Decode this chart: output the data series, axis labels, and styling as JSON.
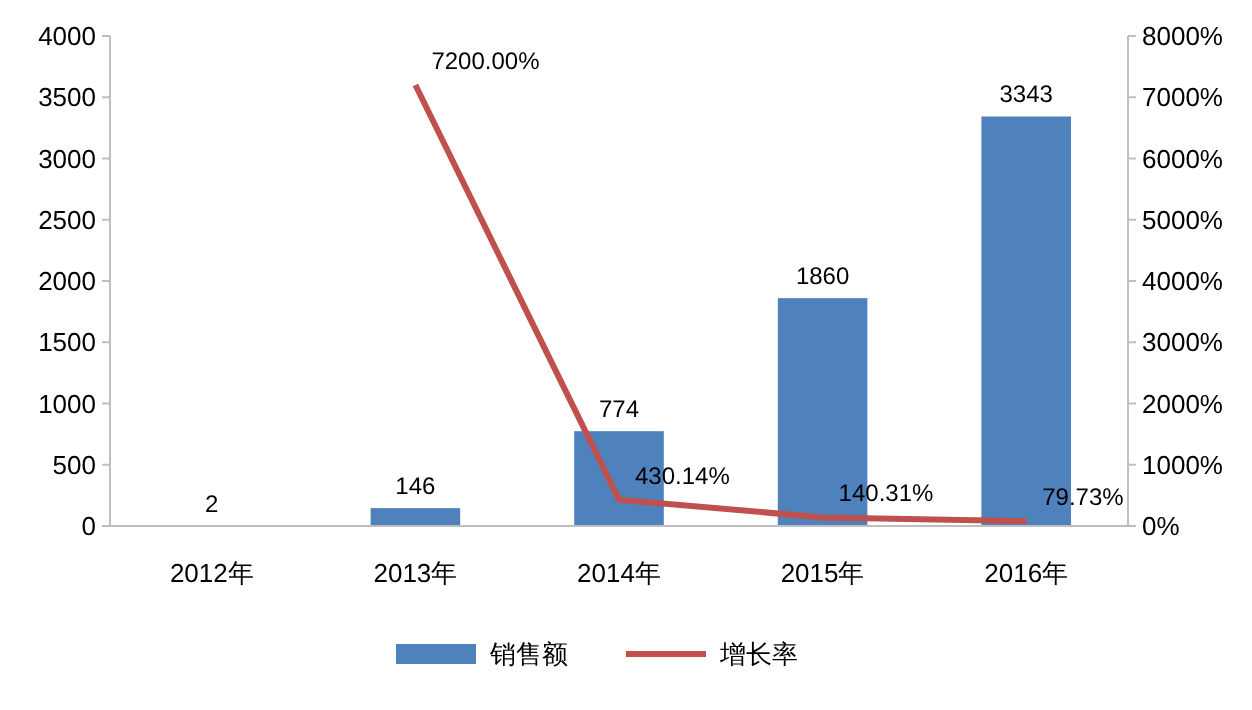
{
  "chart_data": {
    "type": "bar",
    "categories": [
      "2012年",
      "2013年",
      "2014年",
      "2015年",
      "2016年"
    ],
    "series": [
      {
        "name": "销售额",
        "color": "#4f81bd",
        "values": [
          2,
          146,
          774,
          1860,
          3343
        ],
        "value_labels": [
          "2",
          "146",
          "774",
          "1860",
          "3343"
        ]
      },
      {
        "name": "增长率",
        "type": "line",
        "axis": "y2",
        "color": "#c0504d",
        "values": [
          null,
          7200,
          430.14,
          140.31,
          79.73
        ],
        "value_labels": [
          null,
          "7200.00%",
          "430.14%",
          "140.31%",
          "79.73%"
        ]
      }
    ],
    "ylim": [
      0,
      4000
    ],
    "yticks": [
      0,
      500,
      1000,
      1500,
      2000,
      2500,
      3000,
      3500,
      4000
    ],
    "y2lim": [
      0,
      8000
    ],
    "y2ticks": [
      {
        "value": 0,
        "label": "0%"
      },
      {
        "value": 1000,
        "label": "1000%"
      },
      {
        "value": 2000,
        "label": "2000%"
      },
      {
        "value": 3000,
        "label": "3000%"
      },
      {
        "value": 4000,
        "label": "4000%"
      },
      {
        "value": 5000,
        "label": "5000%"
      },
      {
        "value": 6000,
        "label": "6000%"
      },
      {
        "value": 7000,
        "label": "7000%"
      },
      {
        "value": 8000,
        "label": "8000%"
      }
    ],
    "grid": false,
    "legend": "bottom",
    "marker": "none",
    "line_style": "solid"
  }
}
